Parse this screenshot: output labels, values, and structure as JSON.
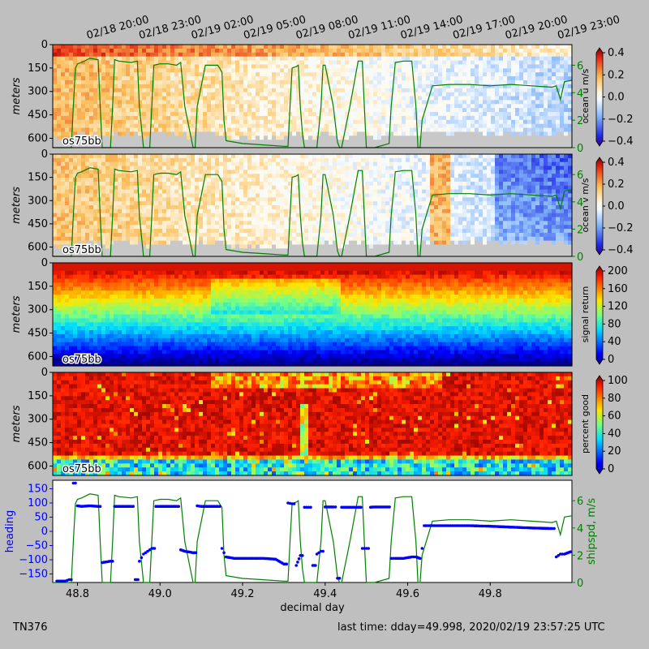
{
  "top_time_labels": [
    "02/18 20:00",
    "02/18 23:00",
    "02/19 02:00",
    "02/19 05:00",
    "02/19 08:00",
    "02/19 11:00",
    "02/19 14:00",
    "02/19 17:00",
    "02/19 20:00",
    "02/19 23:00"
  ],
  "panels": [
    {
      "key": "u",
      "instrument": "os75bb",
      "ylabel": "meters",
      "cbar_label": "ocean u m/s",
      "cbar_ticks": [
        "0.4",
        "0.2",
        "0.0",
        "−0.2",
        "−0.4"
      ],
      "shipspd_ticks": [
        "6",
        "4",
        "2",
        "0"
      ]
    },
    {
      "key": "v",
      "instrument": "os75bb",
      "ylabel": "meters",
      "cbar_label": "ocean v m/s",
      "cbar_ticks": [
        "0.4",
        "0.2",
        "0.0",
        "−0.2",
        "−0.4"
      ],
      "shipspd_ticks": [
        "6",
        "4",
        "2",
        "0"
      ]
    },
    {
      "key": "amp",
      "instrument": "os75bb",
      "ylabel": "meters",
      "cbar_label": "signal return",
      "cbar_ticks": [
        "200",
        "160",
        "120",
        "80",
        "40",
        "0"
      ]
    },
    {
      "key": "pg",
      "instrument": "os75bb",
      "ylabel": "meters",
      "cbar_label": "percent good",
      "cbar_ticks": [
        "100",
        "80",
        "60",
        "40",
        "20",
        "0"
      ]
    }
  ],
  "depth_ticks": [
    "0",
    "150",
    "300",
    "450",
    "600"
  ],
  "bottom_panel": {
    "ylabel_left": "heading",
    "ylabel_right": "shipspd, m/s",
    "left_ticks": [
      "150",
      "100",
      "50",
      "0",
      "−50",
      "−100",
      "−150"
    ],
    "right_ticks": [
      "6",
      "4",
      "2",
      "0"
    ]
  },
  "xlabel": "decimal day",
  "x_ticks": [
    "48.8",
    "49.0",
    "49.2",
    "49.4",
    "49.6",
    "49.8"
  ],
  "footer_left": "TN376",
  "footer_right": "last time: dday=49.998,  2020/02/19 23:57:25 UTC",
  "colors": {
    "heading": "#0000ff",
    "shipspd": "#008000",
    "background": "#bfbfbf"
  },
  "chart_data": {
    "type": "line",
    "x_range": [
      48.74,
      49.998
    ],
    "depth_range_m": [
      0,
      660
    ],
    "shipspd_range": [
      0,
      7.5
    ],
    "heading_range": [
      -180,
      180
    ],
    "shipspd": {
      "x": [
        48.74,
        48.785,
        48.79,
        48.795,
        48.8,
        48.81,
        48.83,
        48.85,
        48.855,
        48.86,
        48.88,
        48.885,
        48.89,
        48.9,
        48.93,
        48.945,
        48.95,
        48.96,
        48.975,
        48.98,
        48.985,
        49.0,
        49.02,
        49.04,
        49.05,
        49.06,
        49.08,
        49.085,
        49.09,
        49.11,
        49.14,
        49.15,
        49.155,
        49.16,
        49.2,
        49.25,
        49.3,
        49.31,
        49.315,
        49.32,
        49.33,
        49.335,
        49.34,
        49.345,
        49.35,
        49.36,
        49.38,
        49.39,
        49.395,
        49.4,
        49.42,
        49.43,
        49.435,
        49.44,
        49.46,
        49.48,
        49.49,
        49.495,
        49.5,
        49.52,
        49.555,
        49.56,
        49.57,
        49.59,
        49.61,
        49.62,
        49.625,
        49.63,
        49.635,
        49.66,
        49.7,
        49.75,
        49.8,
        49.85,
        49.9,
        49.95,
        49.96,
        49.97,
        49.98,
        49.998
      ],
      "y": [
        0,
        0,
        3,
        5.8,
        6.1,
        6.2,
        6.5,
        6.4,
        3,
        0,
        0,
        3,
        6.4,
        6.3,
        6.2,
        6.3,
        3,
        0,
        0,
        3,
        6,
        6.1,
        6.1,
        6.0,
        6.2,
        3,
        0,
        0,
        3,
        6.0,
        6.0,
        5.5,
        2,
        0.5,
        0.3,
        0.2,
        0.1,
        0.1,
        3,
        5.8,
        5.9,
        6.0,
        3,
        1,
        0,
        0,
        0,
        3,
        6.0,
        6.0,
        3,
        0.4,
        0,
        0,
        3,
        6.3,
        6.3,
        3,
        0,
        0,
        0.3,
        3,
        6.2,
        6.3,
        6.3,
        3,
        0,
        0,
        2,
        4.5,
        4.6,
        4.6,
        4.5,
        4.6,
        4.5,
        4.4,
        4.5,
        3.5,
        4.8,
        4.9
      ]
    },
    "heading": {
      "x": [
        48.75,
        48.77,
        48.78,
        48.79,
        48.8,
        48.81,
        48.83,
        48.85,
        48.86,
        48.88,
        48.89,
        48.91,
        48.93,
        48.94,
        48.95,
        48.96,
        48.97,
        48.98,
        48.99,
        49.0,
        49.02,
        49.04,
        49.05,
        49.06,
        49.08,
        49.09,
        49.1,
        49.12,
        49.14,
        49.15,
        49.16,
        49.18,
        49.2,
        49.25,
        49.28,
        49.3,
        49.31,
        49.32,
        49.33,
        49.34,
        49.345,
        49.35,
        49.36,
        49.37,
        49.38,
        49.39,
        49.4,
        49.42,
        49.43,
        49.44,
        49.46,
        49.48,
        49.49,
        49.5,
        49.51,
        49.52,
        49.54,
        49.56,
        49.57,
        49.59,
        49.61,
        49.62,
        49.63,
        49.635,
        49.64,
        49.7,
        49.75,
        49.8,
        49.85,
        49.9,
        49.95,
        49.96,
        49.97,
        49.98,
        49.998
      ],
      "y": [
        -175,
        -175,
        -170,
        170,
        90,
        88,
        90,
        88,
        -110,
        -105,
        88,
        88,
        88,
        -170,
        -105,
        -80,
        -70,
        -60,
        88,
        88,
        88,
        88,
        -65,
        -70,
        -75,
        90,
        88,
        88,
        88,
        -60,
        -90,
        -95,
        -95,
        -95,
        -98,
        -115,
        100,
        97,
        -120,
        -85,
        -85,
        85,
        85,
        -120,
        -80,
        -70,
        86,
        86,
        -165,
        85,
        85,
        85,
        -60,
        -60,
        85,
        86,
        86,
        -95,
        -95,
        -95,
        -90,
        -90,
        -95,
        -60,
        20,
        20,
        20,
        18,
        15,
        12,
        10,
        -90,
        -80,
        -80,
        -70
      ]
    }
  }
}
